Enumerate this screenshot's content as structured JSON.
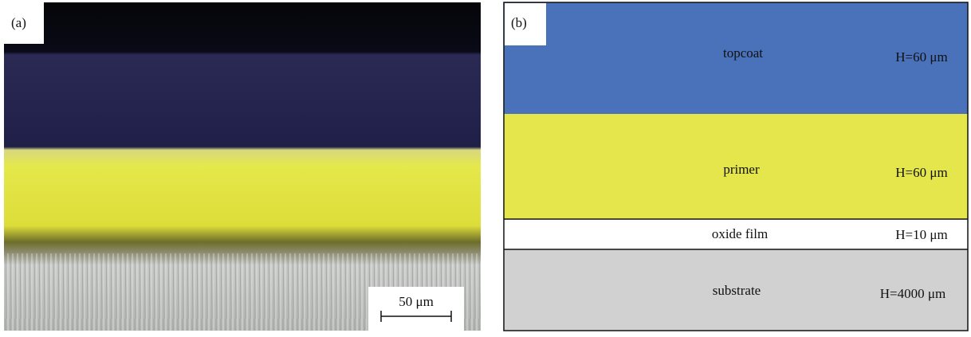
{
  "panel_a": {
    "label": "(a)",
    "scale_bar": "50 μm"
  },
  "panel_b": {
    "label": "(b)",
    "layers": [
      {
        "name": "topcoat",
        "thickness": "H=60 μm"
      },
      {
        "name": "primer",
        "thickness": "H=60 μm"
      },
      {
        "name": "oxide film",
        "thickness": "H=10 μm"
      },
      {
        "name": "substrate",
        "thickness": "H=4000 μm"
      }
    ]
  }
}
